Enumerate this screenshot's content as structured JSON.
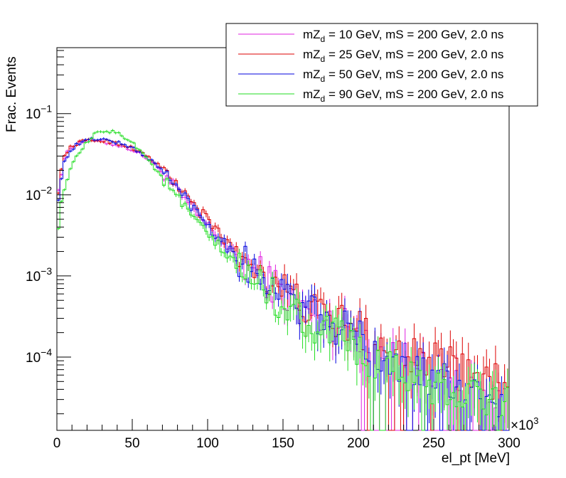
{
  "chart_data": {
    "type": "line",
    "style": "histogram-step-with-error-bars",
    "title": "",
    "xlabel": "el_pt [MeV]",
    "ylabel": "Frac. Events",
    "x_exponent_label": "×10",
    "x_exponent_power": "3",
    "xlim": [
      0,
      300
    ],
    "x_unit_multiplier": 1000,
    "ylim": [
      1.25e-05,
      0.65
    ],
    "yscale": "log",
    "grid": false,
    "legend_placement": "top-right",
    "x_ticks": [
      {
        "value": 0,
        "label": "0"
      },
      {
        "value": 50,
        "label": "50"
      },
      {
        "value": 100,
        "label": "100"
      },
      {
        "value": 150,
        "label": "150"
      },
      {
        "value": 200,
        "label": "200"
      },
      {
        "value": 250,
        "label": "250"
      },
      {
        "value": 300,
        "label": "300"
      }
    ],
    "y_ticks": [
      {
        "value": 0.1,
        "base": "10",
        "exp": "−1"
      },
      {
        "value": 0.01,
        "base": "10",
        "exp": "−2"
      },
      {
        "value": 0.001,
        "base": "10",
        "exp": "−3"
      },
      {
        "value": 0.0001,
        "base": "10",
        "exp": "−4"
      }
    ],
    "bin_width": 2,
    "series": [
      {
        "name": "mZd = 10 GeV, mS = 200 GeV, 2.0 ns",
        "label_main": "mZ",
        "label_sub": "d",
        "label_rest": " = 10 GeV, mS = 200 GeV, 2.0 ns",
        "color": "#e020e0",
        "anchors": [
          [
            1,
            0.012
          ],
          [
            3,
            0.018
          ],
          [
            5,
            0.028
          ],
          [
            8,
            0.036
          ],
          [
            12,
            0.042
          ],
          [
            18,
            0.046
          ],
          [
            25,
            0.046
          ],
          [
            32,
            0.044
          ],
          [
            40,
            0.041
          ],
          [
            50,
            0.036
          ],
          [
            60,
            0.028
          ],
          [
            70,
            0.019
          ],
          [
            80,
            0.011
          ],
          [
            90,
            0.0065
          ],
          [
            100,
            0.0042
          ],
          [
            110,
            0.0026
          ],
          [
            120,
            0.0016
          ],
          [
            130,
            0.0012
          ],
          [
            140,
            0.0009
          ],
          [
            150,
            0.0006
          ],
          [
            160,
            0.00042
          ],
          [
            170,
            0.00035
          ],
          [
            180,
            0.00028
          ],
          [
            190,
            0.00025
          ],
          [
            200,
            0.0002
          ],
          [
            210,
            0.00015
          ],
          [
            220,
            0.00011
          ],
          [
            230,
            9e-05
          ],
          [
            240,
            7e-05
          ],
          [
            250,
            6e-05
          ],
          [
            260,
            5e-05
          ],
          [
            270,
            4e-05
          ],
          [
            280,
            4e-05
          ],
          [
            290,
            3e-05
          ],
          [
            300,
            3e-05
          ]
        ],
        "zero_from": 208
      },
      {
        "name": "mZd = 25 GeV, mS = 200 GeV, 2.0 ns",
        "label_main": "mZ",
        "label_sub": "d",
        "label_rest": " = 25 GeV, mS = 200 GeV, 2.0 ns",
        "color": "#dd0000",
        "anchors": [
          [
            1,
            0.011
          ],
          [
            3,
            0.02
          ],
          [
            5,
            0.03
          ],
          [
            8,
            0.037
          ],
          [
            12,
            0.042
          ],
          [
            18,
            0.046
          ],
          [
            25,
            0.047
          ],
          [
            32,
            0.046
          ],
          [
            40,
            0.043
          ],
          [
            50,
            0.038
          ],
          [
            60,
            0.03
          ],
          [
            70,
            0.021
          ],
          [
            80,
            0.013
          ],
          [
            90,
            0.0078
          ],
          [
            100,
            0.0048
          ],
          [
            110,
            0.003
          ],
          [
            120,
            0.0019
          ],
          [
            130,
            0.0014
          ],
          [
            140,
            0.001
          ],
          [
            150,
            0.0007
          ],
          [
            160,
            0.00048
          ],
          [
            170,
            0.00038
          ],
          [
            180,
            0.0003
          ],
          [
            190,
            0.00026
          ],
          [
            200,
            0.00022
          ],
          [
            210,
            0.00018
          ],
          [
            220,
            0.00015
          ],
          [
            230,
            0.00012
          ],
          [
            240,
            0.0001
          ],
          [
            250,
            9e-05
          ],
          [
            260,
            8e-05
          ],
          [
            270,
            7e-05
          ],
          [
            280,
            6e-05
          ],
          [
            290,
            5e-05
          ],
          [
            300,
            5e-05
          ]
        ],
        "zero_from": 999
      },
      {
        "name": "mZd = 50 GeV, mS = 200 GeV, 2.0 ns",
        "label_main": "mZ",
        "label_sub": "d",
        "label_rest": " = 50 GeV, mS = 200 GeV, 2.0 ns",
        "color": "#0000dd",
        "anchors": [
          [
            1,
            0.009
          ],
          [
            3,
            0.016
          ],
          [
            5,
            0.025
          ],
          [
            8,
            0.033
          ],
          [
            12,
            0.04
          ],
          [
            18,
            0.046
          ],
          [
            25,
            0.049
          ],
          [
            32,
            0.048
          ],
          [
            40,
            0.044
          ],
          [
            50,
            0.038
          ],
          [
            60,
            0.029
          ],
          [
            70,
            0.02
          ],
          [
            80,
            0.012
          ],
          [
            90,
            0.0072
          ],
          [
            100,
            0.0044
          ],
          [
            110,
            0.0027
          ],
          [
            120,
            0.0017
          ],
          [
            130,
            0.0012
          ],
          [
            140,
            0.0009
          ],
          [
            150,
            0.0006
          ],
          [
            160,
            0.00042
          ],
          [
            170,
            0.00033
          ],
          [
            180,
            0.00026
          ],
          [
            190,
            0.00022
          ],
          [
            200,
            0.00018
          ],
          [
            210,
            0.00013
          ],
          [
            220,
            0.0001
          ],
          [
            230,
            8e-05
          ],
          [
            240,
            6e-05
          ],
          [
            250,
            5e-05
          ],
          [
            260,
            5e-05
          ],
          [
            270,
            4e-05
          ],
          [
            280,
            4e-05
          ],
          [
            290,
            3e-05
          ],
          [
            300,
            3e-05
          ]
        ],
        "zero_from": 999
      },
      {
        "name": "mZd = 90 GeV, mS = 200 GeV, 2.0 ns",
        "label_main": "mZ",
        "label_sub": "d",
        "label_rest": " = 90 GeV, mS = 200 GeV, 2.0 ns",
        "color": "#22dd22",
        "anchors": [
          [
            1,
            0.004
          ],
          [
            3,
            0.008
          ],
          [
            5,
            0.012
          ],
          [
            8,
            0.018
          ],
          [
            12,
            0.027
          ],
          [
            18,
            0.04
          ],
          [
            25,
            0.055
          ],
          [
            32,
            0.062
          ],
          [
            40,
            0.058
          ],
          [
            50,
            0.045
          ],
          [
            60,
            0.028
          ],
          [
            70,
            0.016
          ],
          [
            80,
            0.009
          ],
          [
            90,
            0.0052
          ],
          [
            100,
            0.0032
          ],
          [
            110,
            0.002
          ],
          [
            120,
            0.0013
          ],
          [
            130,
            0.0009
          ],
          [
            140,
            0.00065
          ],
          [
            150,
            0.00045
          ],
          [
            160,
            0.00032
          ],
          [
            170,
            0.00025
          ],
          [
            180,
            0.0002
          ],
          [
            190,
            0.00016
          ],
          [
            200,
            0.00012
          ],
          [
            210,
            9e-05
          ],
          [
            220,
            7e-05
          ],
          [
            230,
            6e-05
          ],
          [
            240,
            5e-05
          ],
          [
            250,
            4e-05
          ],
          [
            260,
            4e-05
          ],
          [
            270,
            3e-05
          ],
          [
            280,
            3e-05
          ],
          [
            290,
            3e-05
          ],
          [
            300,
            3e-05
          ]
        ],
        "zero_from": 999
      }
    ]
  }
}
